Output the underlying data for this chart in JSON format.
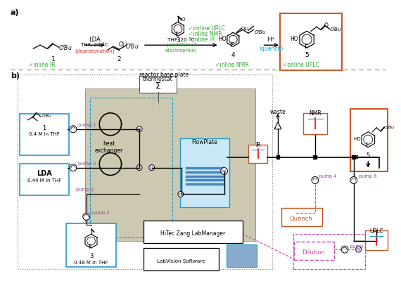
{
  "bg_color": "#ffffff",
  "sec_a": "a)",
  "sec_b": "b)",
  "green": "#22aa22",
  "red_text": "#dd2222",
  "cyan_text": "#00aacc",
  "purple": "#884499",
  "pink": "#cc44aa",
  "orange_edge": "#cc5522",
  "blue_edge": "#2299cc",
  "blue_fill": "#c8e8f8",
  "reactor_fill": "#cdc9b0",
  "reactor_edge": "#999988",
  "gray_dash": "#888888",
  "black": "#000000",
  "lda_text": "LDA",
  "thf20": "THF, 20 °C",
  "deprot": "(deprotonation)",
  "addition": "(addition of\nelectrophile)",
  "quench_label": "(quench)",
  "hplus": "H⁺",
  "chk_ir": "✓inline IR",
  "chk_nmr": "✓inline NMR",
  "chk_uplc": "✓online UPLC",
  "chk_ir2": "✓inline IR",
  "chk_nmr2": "✓inline NMR",
  "chk_uplc2": "✓online UPLC",
  "thermostat": "thermostat",
  "rbp": "reactor base plate",
  "flowplate": "FlowPlate",
  "waste": "waste",
  "nmr": "NMR",
  "ir": "IR",
  "uplc": "UPLC",
  "quench_box": "Quench",
  "dilution_box": "Dilution",
  "hitec": "HiTec Zang LabManager",
  "labvision": "LabVision Software",
  "p1": "pump 1",
  "p2": "pump 2",
  "p3": "pump 3",
  "p4": "pump 4",
  "p5": "pump 5",
  "p6": "pump 6",
  "c1": "0.4 M in THF",
  "c2": "0.44 M in THF",
  "c3": "0.48 M in THF",
  "n1": "1",
  "n2": "2",
  "n3": "3",
  "n4": "4",
  "n5": "5",
  "heat_ex": "heat\nexchanger"
}
